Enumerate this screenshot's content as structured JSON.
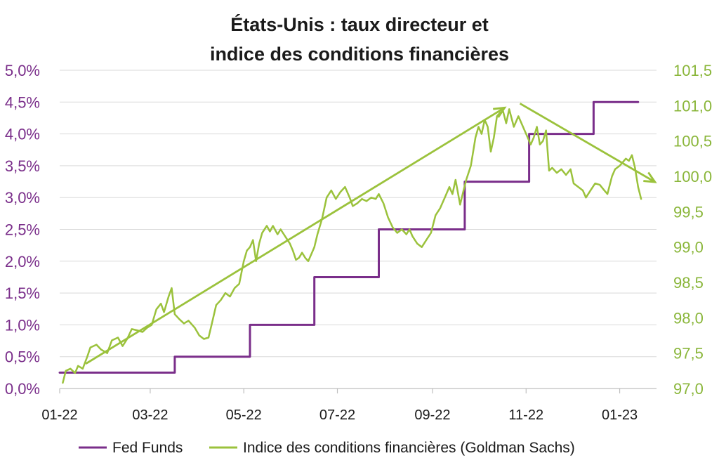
{
  "chart_data": {
    "type": "line",
    "title_lines": [
      "États-Unis : taux directeur et",
      "indice des conditions financières"
    ],
    "y_left": {
      "min": 0.0,
      "max": 5.0,
      "ticks": [
        {
          "v": 0.0,
          "label": "0,0%"
        },
        {
          "v": 0.5,
          "label": "0,5%"
        },
        {
          "v": 1.0,
          "label": "1,0%"
        },
        {
          "v": 1.5,
          "label": "1,5%"
        },
        {
          "v": 2.0,
          "label": "2,0%"
        },
        {
          "v": 2.5,
          "label": "2,5%"
        },
        {
          "v": 3.0,
          "label": "3,0%"
        },
        {
          "v": 3.5,
          "label": "3,5%"
        },
        {
          "v": 4.0,
          "label": "4,0%"
        },
        {
          "v": 4.5,
          "label": "4,5%"
        },
        {
          "v": 5.0,
          "label": "5,0%"
        }
      ]
    },
    "y_right": {
      "min": 97.0,
      "max": 101.5,
      "ticks": [
        {
          "v": 97.0,
          "label": "97,0"
        },
        {
          "v": 97.5,
          "label": "97,5"
        },
        {
          "v": 98.0,
          "label": "98,0"
        },
        {
          "v": 98.5,
          "label": "98,5"
        },
        {
          "v": 99.0,
          "label": "99,0"
        },
        {
          "v": 99.5,
          "label": "99,5"
        },
        {
          "v": 100.0,
          "label": "100,0"
        },
        {
          "v": 100.5,
          "label": "100,5"
        },
        {
          "v": 101.0,
          "label": "101,0"
        },
        {
          "v": 101.5,
          "label": "101,5"
        }
      ]
    },
    "x_axis": {
      "min": "2022-01-01",
      "max": "2023-01-25",
      "ticks": [
        {
          "date": "2022-01-01",
          "label": "01-22"
        },
        {
          "date": "2022-03-01",
          "label": "03-22"
        },
        {
          "date": "2022-05-01",
          "label": "05-22"
        },
        {
          "date": "2022-07-01",
          "label": "07-22"
        },
        {
          "date": "2022-09-01",
          "label": "09-22"
        },
        {
          "date": "2022-11-01",
          "label": "11-22"
        },
        {
          "date": "2023-01-01",
          "label": "01-23"
        }
      ]
    },
    "grid": "horizontal",
    "legend_position": "bottom",
    "series": [
      {
        "name": "Fed Funds",
        "axis": "left",
        "color": "#7a2e8a",
        "style": "step",
        "points": [
          [
            "2022-01-01",
            0.25
          ],
          [
            "2022-03-17",
            0.5
          ],
          [
            "2022-05-05",
            1.0
          ],
          [
            "2022-06-16",
            1.75
          ],
          [
            "2022-07-28",
            2.5
          ],
          [
            "2022-09-22",
            3.25
          ],
          [
            "2022-11-03",
            4.0
          ],
          [
            "2022-12-15",
            4.5
          ],
          [
            "2023-01-13",
            4.5
          ]
        ]
      },
      {
        "name": "Indice des conditions financières (Goldman Sachs)",
        "axis": "right",
        "color": "#9bc23c",
        "style": "line",
        "points": [
          [
            "2022-01-03",
            97.08
          ],
          [
            "2022-01-05",
            97.25
          ],
          [
            "2022-01-08",
            97.28
          ],
          [
            "2022-01-11",
            97.22
          ],
          [
            "2022-01-13",
            97.32
          ],
          [
            "2022-01-16",
            97.28
          ],
          [
            "2022-01-19",
            97.45
          ],
          [
            "2022-01-21",
            97.58
          ],
          [
            "2022-01-25",
            97.62
          ],
          [
            "2022-01-28",
            97.55
          ],
          [
            "2022-02-01",
            97.5
          ],
          [
            "2022-02-04",
            97.68
          ],
          [
            "2022-02-08",
            97.72
          ],
          [
            "2022-02-11",
            97.6
          ],
          [
            "2022-02-14",
            97.7
          ],
          [
            "2022-02-17",
            97.84
          ],
          [
            "2022-02-21",
            97.82
          ],
          [
            "2022-02-24",
            97.8
          ],
          [
            "2022-02-27",
            97.86
          ],
          [
            "2022-03-02",
            97.9
          ],
          [
            "2022-03-05",
            98.12
          ],
          [
            "2022-03-08",
            98.2
          ],
          [
            "2022-03-10",
            98.08
          ],
          [
            "2022-03-13",
            98.3
          ],
          [
            "2022-03-15",
            98.42
          ],
          [
            "2022-03-17",
            98.05
          ],
          [
            "2022-03-20",
            97.98
          ],
          [
            "2022-03-23",
            97.92
          ],
          [
            "2022-03-26",
            97.96
          ],
          [
            "2022-03-30",
            97.86
          ],
          [
            "2022-04-02",
            97.75
          ],
          [
            "2022-04-05",
            97.7
          ],
          [
            "2022-04-08",
            97.72
          ],
          [
            "2022-04-10",
            97.9
          ],
          [
            "2022-04-13",
            98.18
          ],
          [
            "2022-04-16",
            98.25
          ],
          [
            "2022-04-19",
            98.35
          ],
          [
            "2022-04-22",
            98.3
          ],
          [
            "2022-04-25",
            98.42
          ],
          [
            "2022-04-28",
            98.48
          ],
          [
            "2022-05-01",
            98.8
          ],
          [
            "2022-05-03",
            98.95
          ],
          [
            "2022-05-05",
            99.0
          ],
          [
            "2022-05-07",
            99.1
          ],
          [
            "2022-05-09",
            98.8
          ],
          [
            "2022-05-11",
            99.05
          ],
          [
            "2022-05-13",
            99.2
          ],
          [
            "2022-05-16",
            99.3
          ],
          [
            "2022-05-18",
            99.22
          ],
          [
            "2022-05-20",
            99.3
          ],
          [
            "2022-05-23",
            99.18
          ],
          [
            "2022-05-25",
            99.25
          ],
          [
            "2022-05-28",
            99.15
          ],
          [
            "2022-05-31",
            99.05
          ],
          [
            "2022-06-02",
            98.95
          ],
          [
            "2022-06-04",
            98.82
          ],
          [
            "2022-06-06",
            98.85
          ],
          [
            "2022-06-08",
            98.92
          ],
          [
            "2022-06-10",
            98.85
          ],
          [
            "2022-06-12",
            98.8
          ],
          [
            "2022-06-14",
            98.9
          ],
          [
            "2022-06-16",
            99.0
          ],
          [
            "2022-06-18",
            99.18
          ],
          [
            "2022-06-21",
            99.4
          ],
          [
            "2022-06-24",
            99.7
          ],
          [
            "2022-06-27",
            99.8
          ],
          [
            "2022-06-30",
            99.68
          ],
          [
            "2022-07-03",
            99.78
          ],
          [
            "2022-07-06",
            99.85
          ],
          [
            "2022-07-09",
            99.7
          ],
          [
            "2022-07-11",
            99.58
          ],
          [
            "2022-07-14",
            99.62
          ],
          [
            "2022-07-17",
            99.68
          ],
          [
            "2022-07-20",
            99.65
          ],
          [
            "2022-07-23",
            99.7
          ],
          [
            "2022-07-26",
            99.68
          ],
          [
            "2022-07-28",
            99.75
          ],
          [
            "2022-07-31",
            99.62
          ],
          [
            "2022-08-03",
            99.42
          ],
          [
            "2022-08-06",
            99.28
          ],
          [
            "2022-08-09",
            99.2
          ],
          [
            "2022-08-12",
            99.25
          ],
          [
            "2022-08-15",
            99.18
          ],
          [
            "2022-08-17",
            99.25
          ],
          [
            "2022-08-19",
            99.15
          ],
          [
            "2022-08-22",
            99.05
          ],
          [
            "2022-08-25",
            99.0
          ],
          [
            "2022-08-28",
            99.1
          ],
          [
            "2022-08-31",
            99.2
          ],
          [
            "2022-09-03",
            99.45
          ],
          [
            "2022-09-06",
            99.55
          ],
          [
            "2022-09-09",
            99.7
          ],
          [
            "2022-09-12",
            99.85
          ],
          [
            "2022-09-14",
            99.75
          ],
          [
            "2022-09-16",
            99.95
          ],
          [
            "2022-09-19",
            99.6
          ],
          [
            "2022-09-21",
            99.78
          ],
          [
            "2022-09-23",
            99.95
          ],
          [
            "2022-09-26",
            100.15
          ],
          [
            "2022-09-29",
            100.55
          ],
          [
            "2022-10-01",
            100.7
          ],
          [
            "2022-10-03",
            100.6
          ],
          [
            "2022-10-05",
            100.8
          ],
          [
            "2022-10-07",
            100.7
          ],
          [
            "2022-10-09",
            100.35
          ],
          [
            "2022-10-11",
            100.55
          ],
          [
            "2022-10-13",
            100.85
          ],
          [
            "2022-10-15",
            100.9
          ],
          [
            "2022-10-17",
            100.92
          ],
          [
            "2022-10-19",
            100.75
          ],
          [
            "2022-10-21",
            100.95
          ],
          [
            "2022-10-24",
            100.7
          ],
          [
            "2022-10-27",
            100.85
          ],
          [
            "2022-10-29",
            100.75
          ],
          [
            "2022-10-31",
            100.65
          ],
          [
            "2022-11-02",
            100.55
          ],
          [
            "2022-11-04",
            100.45
          ],
          [
            "2022-11-06",
            100.55
          ],
          [
            "2022-11-08",
            100.7
          ],
          [
            "2022-11-10",
            100.45
          ],
          [
            "2022-11-12",
            100.5
          ],
          [
            "2022-11-14",
            100.65
          ],
          [
            "2022-11-16",
            100.08
          ],
          [
            "2022-11-18",
            100.12
          ],
          [
            "2022-11-21",
            100.05
          ],
          [
            "2022-11-24",
            100.1
          ],
          [
            "2022-11-27",
            100.02
          ],
          [
            "2022-11-30",
            100.1
          ],
          [
            "2022-12-02",
            99.9
          ],
          [
            "2022-12-05",
            99.85
          ],
          [
            "2022-12-08",
            99.8
          ],
          [
            "2022-12-10",
            99.7
          ],
          [
            "2022-12-13",
            99.8
          ],
          [
            "2022-12-16",
            99.9
          ],
          [
            "2022-12-19",
            99.88
          ],
          [
            "2022-12-22",
            99.8
          ],
          [
            "2022-12-24",
            99.75
          ],
          [
            "2022-12-27",
            100.0
          ],
          [
            "2022-12-29",
            100.1
          ],
          [
            "2023-01-01",
            100.15
          ],
          [
            "2023-01-03",
            100.2
          ],
          [
            "2023-01-05",
            100.25
          ],
          [
            "2023-01-07",
            100.22
          ],
          [
            "2023-01-09",
            100.3
          ],
          [
            "2023-01-11",
            100.12
          ],
          [
            "2023-01-13",
            99.85
          ],
          [
            "2023-01-15",
            99.68
          ]
        ]
      }
    ],
    "trend_arrows": [
      {
        "axis": "right",
        "from": [
          "2022-01-18",
          97.35
        ],
        "to": [
          "2022-10-18",
          100.97
        ]
      },
      {
        "axis": "right",
        "from": [
          "2022-10-28",
          101.03
        ],
        "to": [
          "2023-01-24",
          99.92
        ]
      }
    ]
  },
  "legend": {
    "items": [
      {
        "label": "Fed Funds",
        "color": "#7a2e8a"
      },
      {
        "label": "Indice des conditions financières (Goldman Sachs)",
        "color": "#9bc23c"
      }
    ]
  }
}
